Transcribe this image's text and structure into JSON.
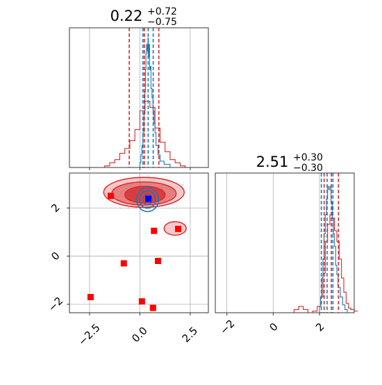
{
  "chart_data": [
    {
      "type": "histogram",
      "panel": "top-left",
      "title_value": "0.22",
      "title_sup": "+0.72",
      "title_sub": "−0.75",
      "xlim": [
        -3.5,
        3.4
      ],
      "grid": true,
      "series": [
        {
          "color": "#d62728",
          "quantile_lines": [
            -0.53,
            0.22,
            0.94
          ]
        },
        {
          "color": "#1f77b4",
          "quantile_lines": [
            0.15,
            0.41,
            0.66
          ]
        }
      ],
      "red_hist": {
        "edges": [
          -3.3,
          -1.75,
          -1.5,
          -1.25,
          -1.0,
          -0.75,
          -0.5,
          -0.25,
          0.0,
          0.25,
          0.5,
          0.75,
          1.0,
          1.25,
          1.5,
          1.75,
          2.0,
          2.25,
          2.6
        ],
        "values": [
          0.0,
          0.01,
          0.03,
          0.05,
          0.09,
          0.12,
          0.17,
          0.24,
          0.36,
          0.42,
          0.38,
          0.25,
          0.16,
          0.1,
          0.05,
          0.03,
          0.01,
          0.0
        ]
      },
      "blue_hist": {
        "x": [
          -0.1,
          0.0,
          0.05,
          0.1,
          0.15,
          0.2,
          0.25,
          0.28,
          0.3,
          0.33,
          0.36,
          0.4,
          0.42,
          0.45,
          0.48,
          0.52,
          0.55,
          0.6,
          0.65,
          0.7,
          0.75,
          0.8,
          0.9,
          1.0,
          1.2,
          1.5
        ],
        "values": [
          0.0,
          0.03,
          0.08,
          0.14,
          0.22,
          0.34,
          0.48,
          0.62,
          0.72,
          0.78,
          0.74,
          0.82,
          0.7,
          0.78,
          0.62,
          0.64,
          0.5,
          0.44,
          0.36,
          0.28,
          0.22,
          0.14,
          0.08,
          0.04,
          0.02,
          0.0
        ]
      }
    },
    {
      "type": "histogram",
      "panel": "bottom-right",
      "title_value": "2.51",
      "title_sup": "+0.30",
      "title_sub": "−0.30",
      "xlim": [
        -2.5,
        3.5
      ],
      "xticks": [
        "−2",
        "0",
        "2"
      ],
      "xtick_values": [
        -2,
        0,
        2
      ],
      "grid": true,
      "series": [
        {
          "color": "#d62728",
          "quantile_lines": [
            2.2,
            2.51,
            2.82
          ]
        },
        {
          "color": "#1f77b4",
          "quantile_lines": [
            2.08,
            2.33,
            2.58
          ]
        }
      ],
      "red_hist": {
        "x": [
          0.6,
          0.9,
          1.1,
          1.3,
          1.5,
          1.7,
          1.9,
          2.05,
          2.15,
          2.25,
          2.35,
          2.45,
          2.55,
          2.65,
          2.75,
          2.85,
          2.95,
          3.05,
          3.15,
          3.25,
          3.35,
          3.5
        ],
        "values": [
          0.0,
          0.02,
          0.04,
          0.02,
          0.0,
          0.01,
          0.04,
          0.1,
          0.25,
          0.45,
          0.56,
          0.62,
          0.6,
          0.52,
          0.45,
          0.34,
          0.22,
          0.13,
          0.06,
          0.03,
          0.02,
          0.01
        ]
      },
      "blue_hist": {
        "x": [
          1.9,
          2.0,
          2.05,
          2.1,
          2.15,
          2.2,
          2.25,
          2.3,
          2.35,
          2.4,
          2.45,
          2.5,
          2.55,
          2.6,
          2.65,
          2.7,
          2.75,
          2.8,
          2.9,
          3.0,
          3.1,
          3.2
        ],
        "values": [
          0.0,
          0.04,
          0.1,
          0.22,
          0.34,
          0.5,
          0.62,
          0.72,
          0.8,
          0.78,
          0.8,
          0.7,
          0.6,
          0.5,
          0.42,
          0.3,
          0.24,
          0.16,
          0.1,
          0.05,
          0.02,
          0.0
        ]
      }
    },
    {
      "type": "scatter",
      "panel": "bottom-left",
      "xlim": [
        -3.5,
        3.4
      ],
      "ylim": [
        -2.35,
        3.45
      ],
      "xticks": [
        "−2.5",
        "0.0",
        "2.5"
      ],
      "xtick_values": [
        -2.5,
        0.0,
        2.5
      ],
      "yticks": [
        "−2",
        "0",
        "2"
      ],
      "ytick_values": [
        -2,
        0,
        2
      ],
      "grid": true,
      "red_points": [
        {
          "x": -1.45,
          "y": 2.5
        },
        {
          "x": 0.7,
          "y": 1.05
        },
        {
          "x": 1.9,
          "y": 1.13
        },
        {
          "x": -0.8,
          "y": -0.3
        },
        {
          "x": 0.9,
          "y": -0.2
        },
        {
          "x": -2.45,
          "y": -1.7
        },
        {
          "x": 0.1,
          "y": -1.88
        },
        {
          "x": 0.65,
          "y": -2.15
        }
      ],
      "blue_point": {
        "x": 0.42,
        "y": 2.38
      },
      "red_contours": [
        {
          "level": "outer",
          "cx": 0.2,
          "cy": 2.65,
          "rx": 2.0,
          "ry": 0.62,
          "fill": "rgba(214,39,40,0.25)"
        },
        {
          "level": "middle",
          "cx": 0.2,
          "cy": 2.6,
          "rx": 1.6,
          "ry": 0.48,
          "fill": "rgba(214,39,40,0.45)"
        },
        {
          "level": "inner",
          "cx": 0.25,
          "cy": 2.55,
          "rx": 1.0,
          "ry": 0.35,
          "fill": "rgba(214,39,40,0.75)"
        }
      ],
      "red_island": {
        "cx": 1.75,
        "cy": 1.15,
        "rx": 0.55,
        "ry": 0.28
      },
      "blue_contours": [
        {
          "cx": 0.38,
          "cy": 2.35,
          "rx": 0.55,
          "ry": 0.5
        },
        {
          "cx": 0.38,
          "cy": 2.35,
          "rx": 0.4,
          "ry": 0.36
        },
        {
          "cx": 0.38,
          "cy": 2.35,
          "rx": 0.22,
          "ry": 0.22
        }
      ]
    }
  ]
}
